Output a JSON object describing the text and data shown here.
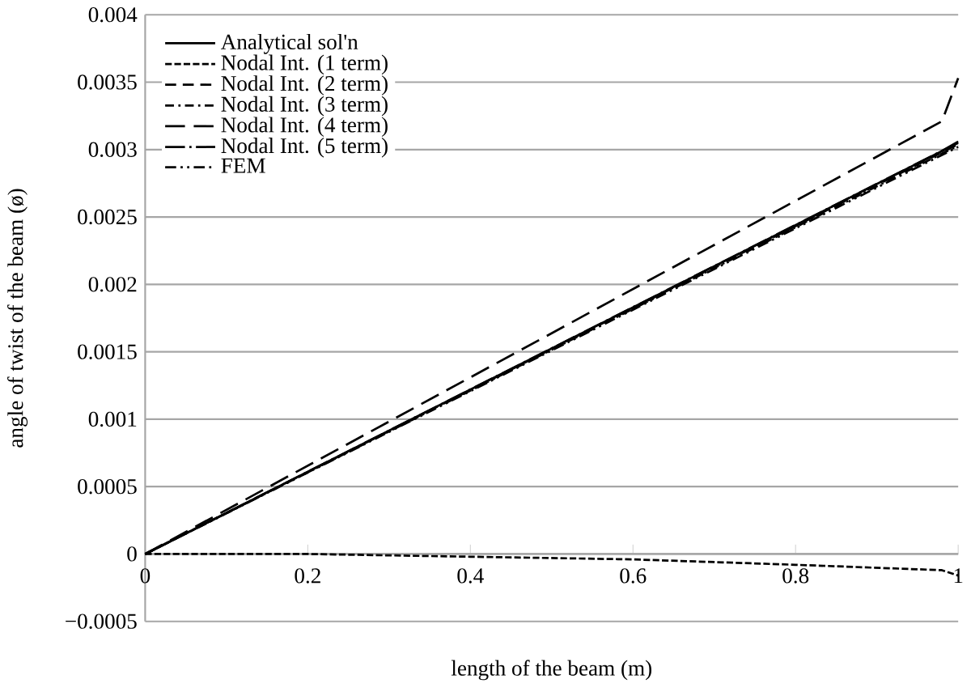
{
  "chart_data": {
    "type": "line",
    "xlabel": "length of the beam (m)",
    "ylabel": "angle of twist of the beam (ø)",
    "xlim": [
      0,
      1
    ],
    "ylim": [
      -0.0005,
      0.004
    ],
    "xticks": [
      0,
      0.2,
      0.4,
      0.6,
      0.8,
      1
    ],
    "yticks": [
      {
        "value": -0.0005,
        "label": "−0.0005"
      },
      0,
      0.0005,
      0.001,
      0.0015,
      0.002,
      0.0025,
      0.003,
      0.0035,
      0.004
    ],
    "grid": "y",
    "legend": "top left",
    "series": [
      {
        "name": "Analytical sol'n",
        "color": "#000000",
        "line_style": "solid",
        "x": [
          0,
          1
        ],
        "values": [
          0,
          0.00305
        ]
      },
      {
        "name": "Nodal Int. (1 term)",
        "color": "#000000",
        "line_style": "densely dashed",
        "x": [
          0,
          0.2,
          0.4,
          0.6,
          0.8,
          0.98,
          1
        ],
        "values": [
          0,
          0,
          -2e-05,
          -4e-05,
          -8e-05,
          -0.00012,
          -0.00016
        ]
      },
      {
        "name": "Nodal Int. (2 term)",
        "color": "#000000",
        "line_style": "dashed",
        "x": [
          0,
          0.98,
          1
        ],
        "values": [
          0,
          0.00298,
          0.00304
        ]
      },
      {
        "name": "Nodal Int. (3 term)",
        "color": "#000000",
        "line_style": "dashdotted",
        "x": [
          0,
          0.98,
          1
        ],
        "values": [
          0,
          0.00297,
          0.00303
        ]
      },
      {
        "name": "Nodal Int. (4 term)",
        "color": "#000000",
        "line_style": "long dashed",
        "x": [
          0,
          0.98,
          1
        ],
        "values": [
          0,
          0.00321,
          0.00353
        ]
      },
      {
        "name": "Nodal Int. (5 term)",
        "color": "#000000",
        "line_style": "long dash dot",
        "x": [
          0,
          0.98,
          1
        ],
        "values": [
          0,
          0.00299,
          0.00306
        ]
      },
      {
        "name": "FEM",
        "color": "#000000",
        "line_style": "dash dot dot",
        "x": [
          0,
          0.98,
          1
        ],
        "values": [
          0,
          0.00296,
          0.00302
        ]
      }
    ]
  }
}
